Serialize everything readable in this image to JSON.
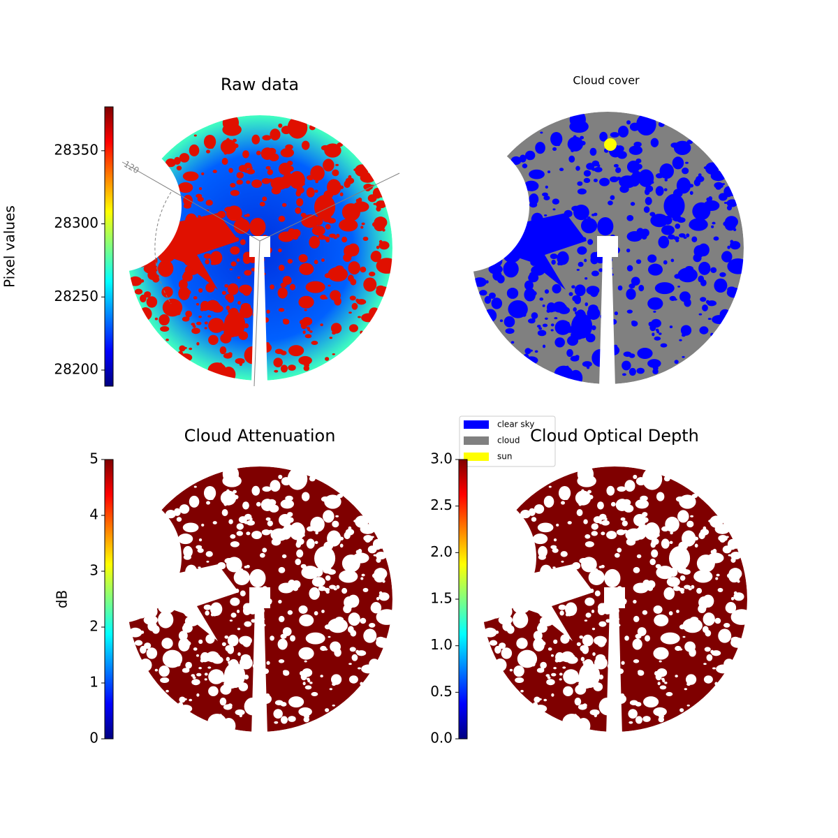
{
  "chart_data": [
    {
      "type": "image",
      "title": "Raw data",
      "colormap": "jet",
      "colorbar": {
        "label": "Pixel values",
        "lim": [
          28189,
          28380
        ],
        "ticks": [
          28200,
          28250,
          28300,
          28350
        ]
      },
      "annotations": [
        "120"
      ]
    },
    {
      "type": "image",
      "title": "Cloud cover",
      "legend": "lower left",
      "series": [
        {
          "name": "clear sky",
          "color": "#0000ff"
        },
        {
          "name": "cloud",
          "color": "#808080"
        },
        {
          "name": "sun",
          "color": "#ffff00"
        }
      ]
    },
    {
      "type": "image",
      "title": "Cloud Attenuation",
      "colormap": "jet",
      "colorbar": {
        "label": "dB",
        "lim": [
          0,
          5
        ],
        "ticks": [
          0,
          1,
          2,
          3,
          4,
          5
        ]
      }
    },
    {
      "type": "image",
      "title": "Cloud Optical Depth",
      "colormap": "jet",
      "colorbar": {
        "lim": [
          0,
          3
        ],
        "ticks": [
          {
            "value": 0,
            "label": "0.0"
          },
          {
            "value": 0.5,
            "label": "0.5"
          },
          {
            "value": 1,
            "label": "1.0"
          },
          {
            "value": 1.5,
            "label": "1.5"
          },
          {
            "value": 2,
            "label": "2.0"
          },
          {
            "value": 2.5,
            "label": "2.5"
          },
          {
            "value": 3,
            "label": "3.0"
          }
        ]
      }
    }
  ]
}
